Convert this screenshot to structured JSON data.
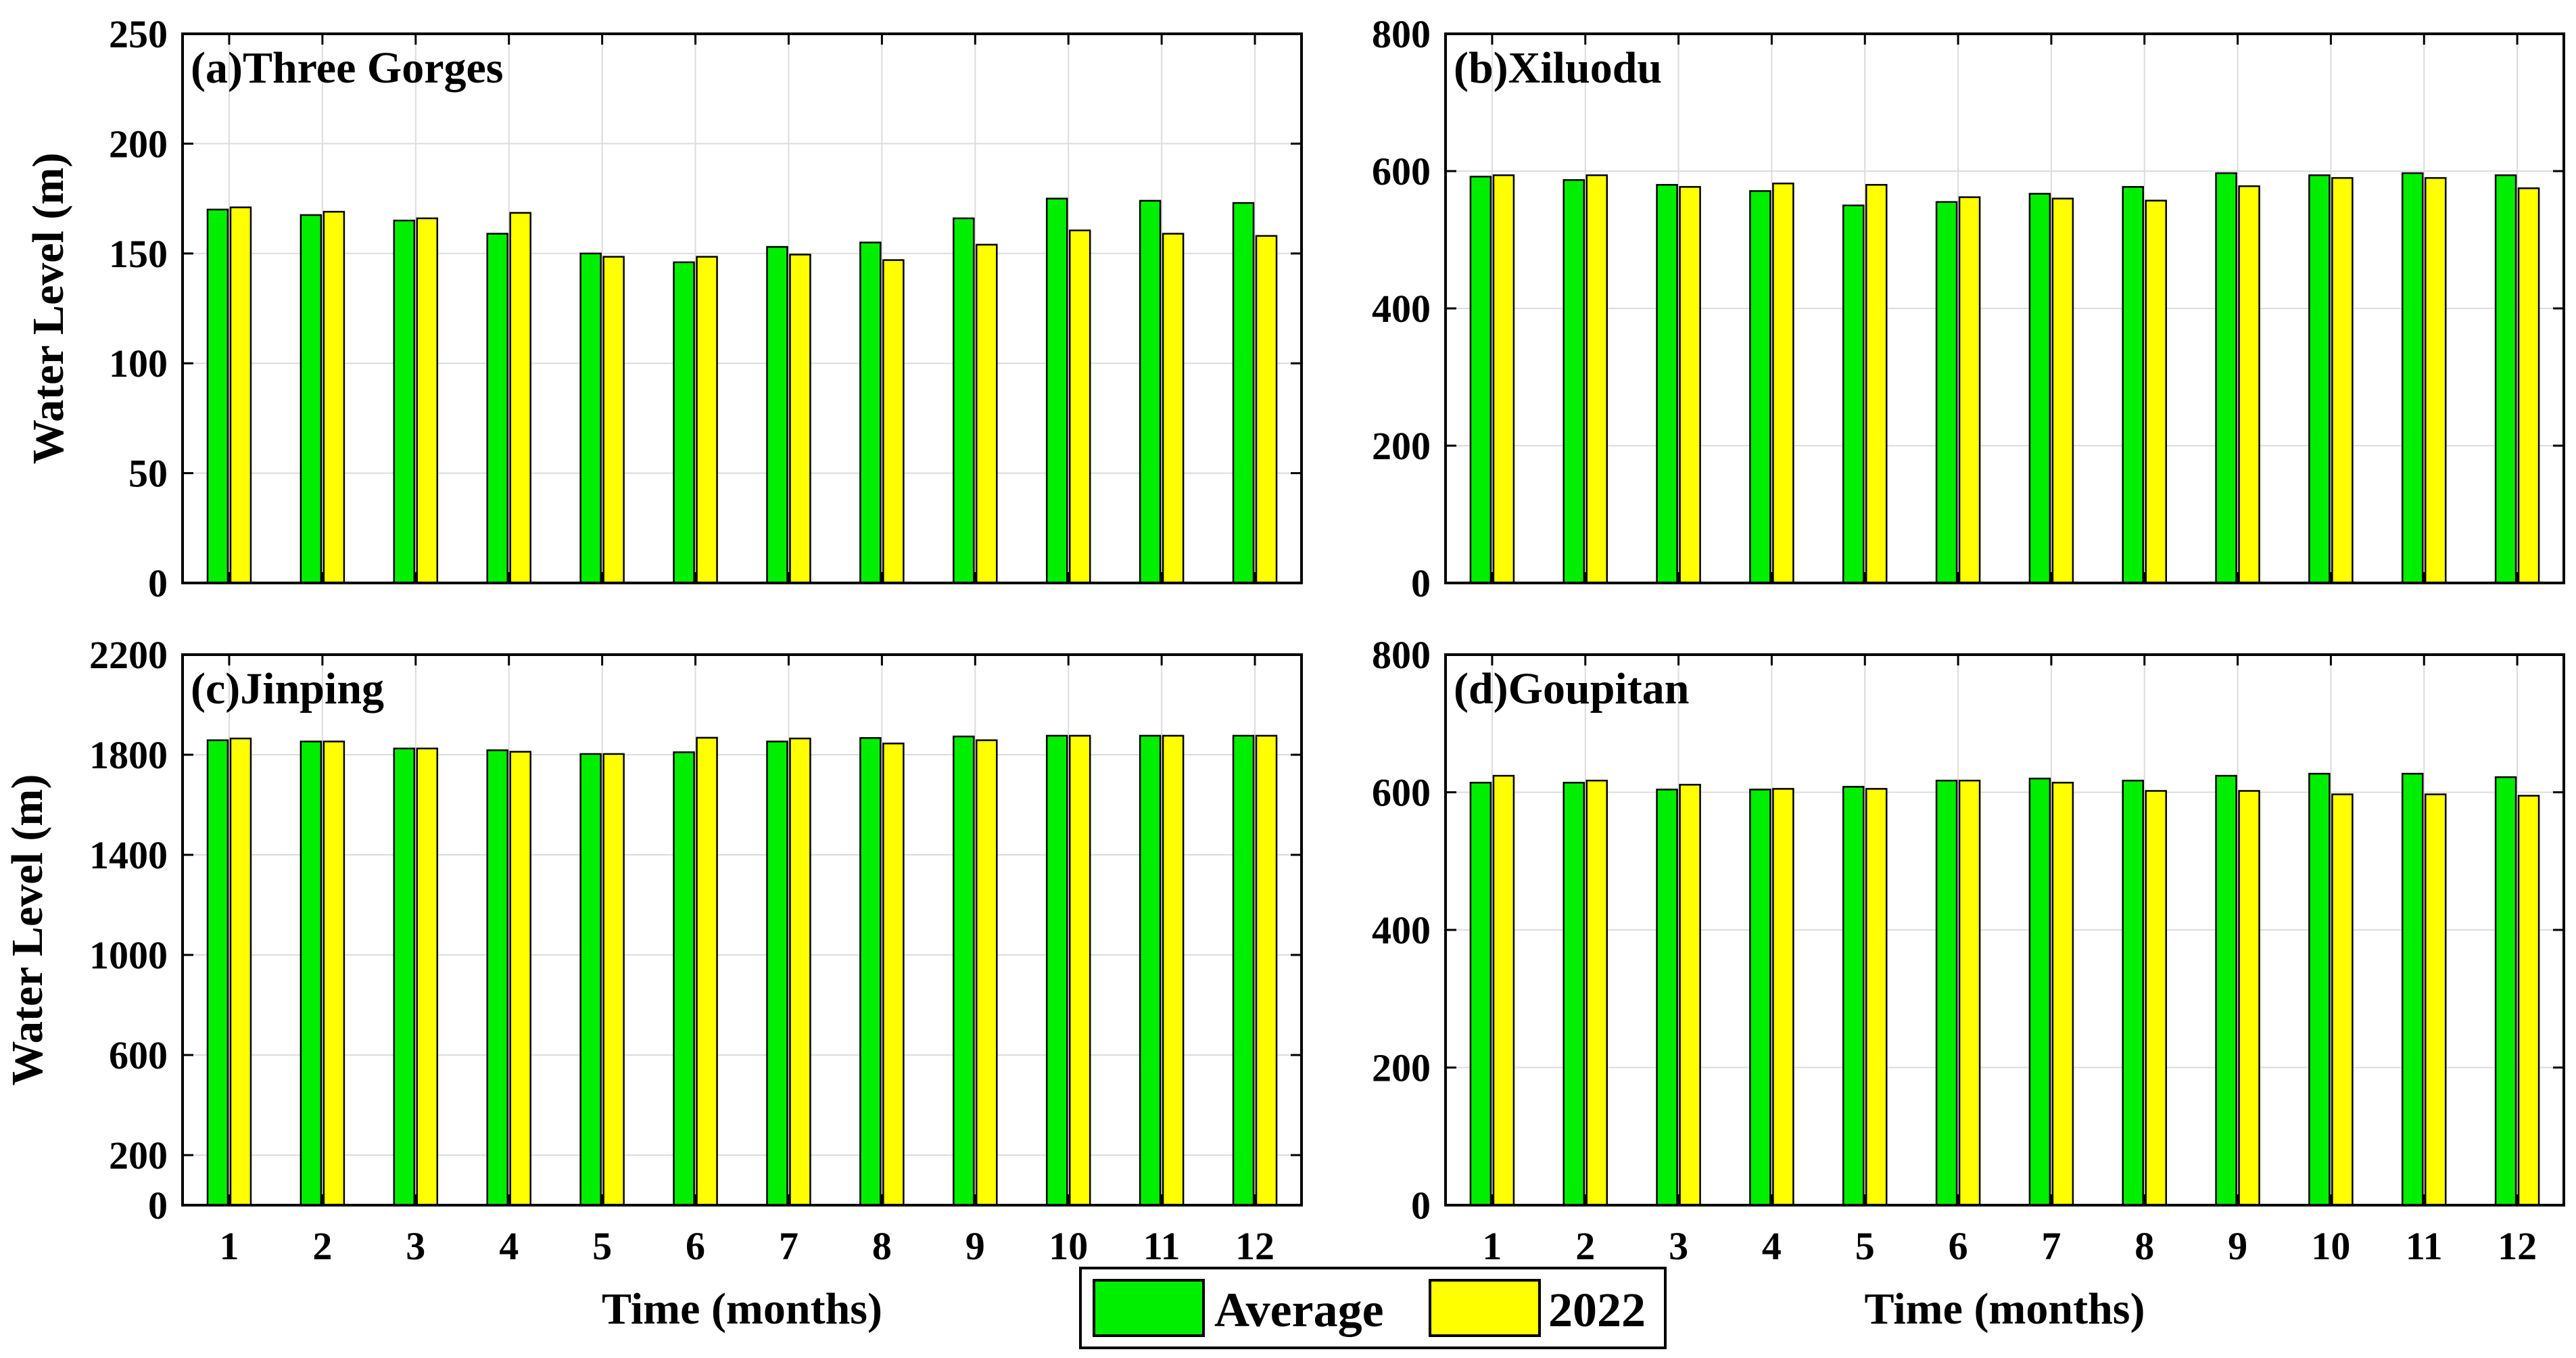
{
  "chart_data": [
    {
      "type": "bar",
      "title": "(a)Three Gorges",
      "xlabel": "",
      "ylabel": "Water Level (m)",
      "categories": [
        "1",
        "2",
        "3",
        "4",
        "5",
        "6",
        "7",
        "8",
        "9",
        "10",
        "11",
        "12"
      ],
      "ylim": [
        0,
        250
      ],
      "yticks": [
        "0",
        "50",
        "100",
        "150",
        "200",
        "250"
      ],
      "grid": true,
      "series": [
        {
          "name": "Average",
          "values": [
            170,
            167.5,
            165,
            159,
            150,
            146,
            153,
            155,
            166,
            175,
            174,
            173
          ]
        },
        {
          "name": "2022",
          "values": [
            171,
            169,
            166,
            168.5,
            148.5,
            148.5,
            149.5,
            147,
            154,
            160.5,
            159,
            158
          ]
        }
      ]
    },
    {
      "type": "bar",
      "title": "(b)Xiluodu",
      "xlabel": "",
      "ylabel": "",
      "categories": [
        "1",
        "2",
        "3",
        "4",
        "5",
        "6",
        "7",
        "8",
        "9",
        "10",
        "11",
        "12"
      ],
      "ylim": [
        0,
        800
      ],
      "yticks": [
        "0",
        "200",
        "400",
        "600",
        "800"
      ],
      "grid": true,
      "series": [
        {
          "name": "Average",
          "values": [
            592,
            587,
            580,
            571,
            550,
            555,
            567,
            577,
            597,
            594,
            597,
            594
          ]
        },
        {
          "name": "2022",
          "values": [
            594,
            594,
            577,
            582,
            580,
            562,
            560,
            557,
            578,
            590,
            590,
            575
          ]
        }
      ]
    },
    {
      "type": "bar",
      "title": "(c)Jinping",
      "xlabel": "Time (months)",
      "ylabel": "Water Level (m)",
      "categories": [
        "1",
        "2",
        "3",
        "4",
        "5",
        "6",
        "7",
        "8",
        "9",
        "10",
        "11",
        "12"
      ],
      "ylim": [
        0,
        2200
      ],
      "yticks": [
        "0",
        "200",
        "600",
        "1000",
        "1400",
        "1800",
        "2200"
      ],
      "grid": true,
      "series": [
        {
          "name": "Average",
          "values": [
            1858,
            1853,
            1825,
            1818,
            1803,
            1810,
            1853,
            1867,
            1873,
            1876,
            1876,
            1876
          ]
        },
        {
          "name": "2022",
          "values": [
            1865,
            1853,
            1825,
            1812,
            1803,
            1868,
            1865,
            1845,
            1858,
            1876,
            1876,
            1876
          ]
        }
      ]
    },
    {
      "type": "bar",
      "title": "(d)Goupitan",
      "xlabel": "Time (months)",
      "ylabel": "",
      "categories": [
        "1",
        "2",
        "3",
        "4",
        "5",
        "6",
        "7",
        "8",
        "9",
        "10",
        "11",
        "12"
      ],
      "ylim": [
        0,
        800
      ],
      "yticks": [
        "0",
        "200",
        "400",
        "600",
        "800"
      ],
      "grid": true,
      "series": [
        {
          "name": "Average",
          "values": [
            614,
            614,
            604,
            604,
            608,
            617,
            620,
            617,
            624,
            627,
            627,
            622
          ]
        },
        {
          "name": "2022",
          "values": [
            624,
            617,
            611,
            605,
            605,
            617,
            614,
            602,
            602,
            597,
            597,
            595
          ]
        }
      ]
    }
  ],
  "legend": {
    "entries": [
      {
        "label": "Average",
        "color": "#00ee00"
      },
      {
        "label": "2022",
        "color": "#ffff00"
      }
    ]
  },
  "colors": {
    "average": "#00ee00",
    "y2022": "#ffff00",
    "grid": "#dcdcdc",
    "axis": "#000000"
  }
}
